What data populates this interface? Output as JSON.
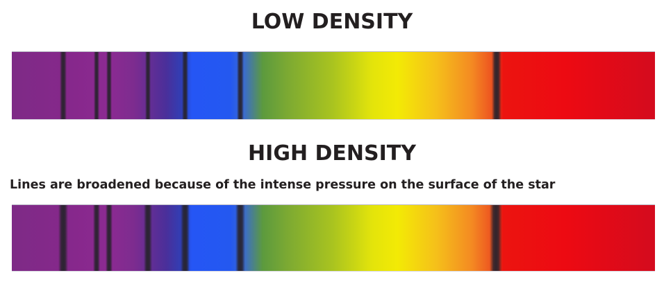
{
  "low_density": {
    "title": "LOW DENSITY"
  },
  "high_density": {
    "title": "HIGH DENSITY",
    "caption": "Lines are broadened because of the intense pressure on the surface of the star"
  }
}
